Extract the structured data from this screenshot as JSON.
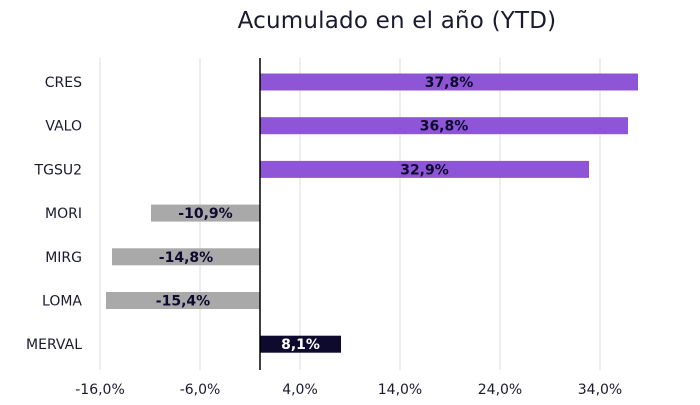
{
  "chart_data": {
    "type": "bar",
    "orientation": "horizontal",
    "title": "Acumulado en el año (YTD)",
    "categories": [
      "CRES",
      "VALO",
      "TGSU2",
      "MORI",
      "MIRG",
      "LOMA",
      "MERVAL"
    ],
    "values": [
      37.8,
      36.8,
      32.9,
      -10.9,
      -14.8,
      -15.4,
      8.1
    ],
    "data_labels": [
      "37,8%",
      "36,8%",
      "32,9%",
      "-10,9%",
      "-14,8%",
      "-15,4%",
      "8,1%"
    ],
    "xlim": [
      -16,
      40
    ],
    "x_ticks": [
      -16,
      -6,
      4,
      14,
      24,
      34
    ],
    "x_tick_labels": [
      "-16,0%",
      "-6,0%",
      "4,0%",
      "14,0%",
      "24,0%",
      "34,0%"
    ],
    "grid": "vertical",
    "colors": {
      "positive": "#8e55d6",
      "negative": "#a9a9a9",
      "benchmark": "#0d0a2e",
      "label_dark": "#0d0a2e",
      "label_light": "#ffffff",
      "grid": "#dcdcdc",
      "axis": "#000000"
    },
    "benchmark_category": "MERVAL"
  }
}
